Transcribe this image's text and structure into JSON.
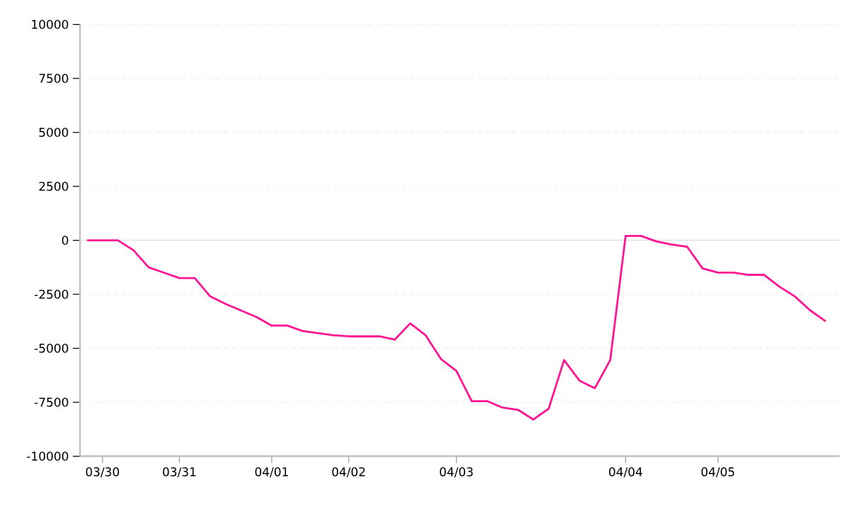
{
  "chart_data": {
    "type": "line",
    "categories": [
      null,
      "03/30",
      null,
      null,
      null,
      null,
      "03/31",
      null,
      null,
      null,
      null,
      null,
      "04/01",
      null,
      null,
      null,
      null,
      "04/02",
      null,
      null,
      null,
      null,
      null,
      null,
      "04/03",
      null,
      null,
      null,
      null,
      null,
      null,
      null,
      null,
      null,
      null,
      "04/04",
      null,
      null,
      null,
      null,
      null,
      "04/05",
      null,
      null,
      null,
      null,
      null,
      null,
      null
    ],
    "series": [
      {
        "color": "#ff1493",
        "values": [
          0,
          0,
          0,
          -450,
          -1250,
          -1500,
          -1750,
          -1750,
          -2600,
          -2950,
          -3250,
          -3550,
          -3950,
          -3950,
          -4200,
          -4300,
          -4400,
          -4450,
          -4450,
          -4450,
          -4600,
          -3850,
          -4400,
          -5500,
          -6050,
          -7450,
          -7450,
          -7750,
          -7850,
          -8300,
          -7800,
          -5550,
          -6500,
          -6850,
          -5550,
          200,
          200,
          -50,
          -200,
          -300,
          -1300,
          -1500,
          -1500,
          -1600,
          -1600,
          -2150,
          -2600,
          -3250,
          -3750
        ]
      }
    ],
    "ylim": [
      -10000,
      10000
    ],
    "yticks": [
      -10000,
      -7500,
      -5000,
      -2500,
      0,
      2500,
      5000,
      7500,
      10000
    ],
    "grid": "y",
    "ref_lines": [
      {
        "axis": "y",
        "value": 0,
        "color": "#dddddd"
      }
    ],
    "marker": "none",
    "line_style": "solid"
  }
}
